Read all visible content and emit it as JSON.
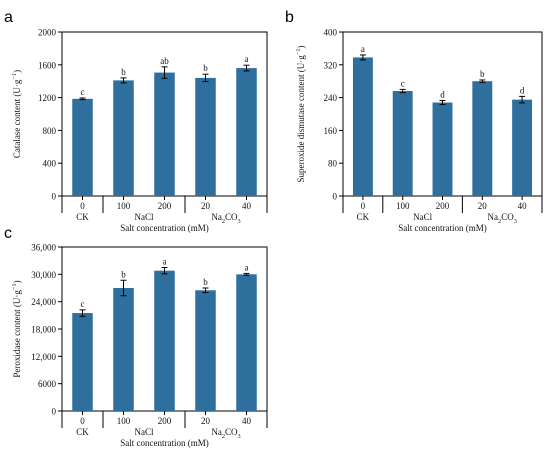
{
  "chart_data": [
    {
      "type": "bar",
      "panel_letter": "a",
      "x": [
        "0",
        "100",
        "200",
        "20",
        "40"
      ],
      "groups": [
        {
          "label": "CK",
          "span": [
            0,
            0
          ]
        },
        {
          "label": "NaCl",
          "span": [
            1,
            2
          ]
        },
        {
          "label": "Na₂CO₃",
          "span": [
            3,
            4
          ]
        }
      ],
      "values": [
        1185,
        1410,
        1505,
        1440,
        1560
      ],
      "errors": [
        10,
        30,
        70,
        45,
        35
      ],
      "letters": [
        "c",
        "b",
        "ab",
        "b",
        "a"
      ],
      "ylabel": "Catalase content (U·g⁻¹)",
      "xlabel": "Salt concentration (mM)",
      "ylim": [
        0,
        2000
      ],
      "yticks": [
        "0",
        "400",
        "800",
        "1200",
        "1600",
        "2000"
      ],
      "bar_color": "#2e6f9e"
    },
    {
      "type": "bar",
      "panel_letter": "b",
      "x": [
        "0",
        "100",
        "200",
        "20",
        "40"
      ],
      "groups": [
        {
          "label": "CK",
          "span": [
            0,
            0
          ]
        },
        {
          "label": "NaCl",
          "span": [
            1,
            2
          ]
        },
        {
          "label": "Na₂CO₃",
          "span": [
            3,
            4
          ]
        }
      ],
      "values": [
        338,
        256,
        228,
        280,
        235
      ],
      "errors": [
        6,
        4,
        5,
        3,
        8
      ],
      "letters": [
        "a",
        "c",
        "d",
        "b",
        "d"
      ],
      "ylabel": "Superoxide dismutase content (U·g⁻¹)",
      "xlabel": "Salt concentration (mM)",
      "ylim": [
        0,
        400
      ],
      "yticks": [
        "0",
        "80",
        "160",
        "240",
        "320",
        "400"
      ],
      "bar_color": "#2e6f9e"
    },
    {
      "type": "bar",
      "panel_letter": "c",
      "x": [
        "0",
        "100",
        "200",
        "20",
        "40"
      ],
      "groups": [
        {
          "label": "CK",
          "span": [
            0,
            0
          ]
        },
        {
          "label": "NaCl",
          "span": [
            1,
            2
          ]
        },
        {
          "label": "Na₂CO₃",
          "span": [
            3,
            4
          ]
        }
      ],
      "values": [
        21500,
        27000,
        30800,
        26500,
        30000
      ],
      "errors": [
        700,
        1700,
        700,
        500,
        200
      ],
      "letters": [
        "c",
        "b",
        "a",
        "b",
        "a"
      ],
      "ylabel": "Peroxidase content (U·g⁻¹)",
      "xlabel": "Salt concentration (mM)",
      "ylim": [
        0,
        36000
      ],
      "yticks": [
        "0",
        "6000",
        "12,000",
        "18,000",
        "24,000",
        "30,000",
        "36,000"
      ],
      "bar_color": "#2e6f9e"
    }
  ]
}
